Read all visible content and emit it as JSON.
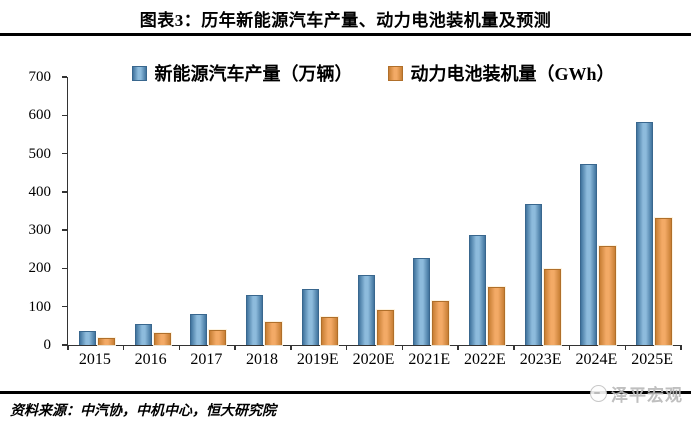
{
  "header": {
    "title": "图表3：历年新能源汽车产量、动力电池装机量及预测"
  },
  "chart_data": {
    "type": "bar",
    "title": "图表3：历年新能源汽车产量、动力电池装机量及预测",
    "categories": [
      "2015",
      "2016",
      "2017",
      "2018",
      "2019E",
      "2020E",
      "2021E",
      "2022E",
      "2023E",
      "2024E",
      "2025E"
    ],
    "series": [
      {
        "name": "新能源汽车产量（万辆）",
        "color": "#7fb0d6",
        "values": [
          34,
          52,
          79,
          127,
          145,
          180,
          225,
          285,
          365,
          470,
          580
        ]
      },
      {
        "name": "动力电池装机量（GWh）",
        "color": "#f2a35f",
        "values": [
          16,
          28,
          36,
          57,
          70,
          90,
          113,
          150,
          197,
          257,
          330
        ]
      }
    ],
    "xlabel": "",
    "ylabel": "",
    "ylim": [
      0,
      700
    ],
    "yticks": [
      0,
      100,
      200,
      300,
      400,
      500,
      600,
      700
    ],
    "grid": false,
    "legend_position": "top"
  },
  "footer": {
    "source": "资料来源：中汽协，中机中心，恒大研究院",
    "logo": "泽平宏观"
  },
  "colors": {
    "bar_blue": "#7fb0d6",
    "bar_blue_edge": "#39678e",
    "bar_orange": "#f2a35f",
    "bar_orange_edge": "#b06f2a",
    "axis": "#333333",
    "rule": "#000000",
    "logo_gray": "#b9b9b9"
  }
}
